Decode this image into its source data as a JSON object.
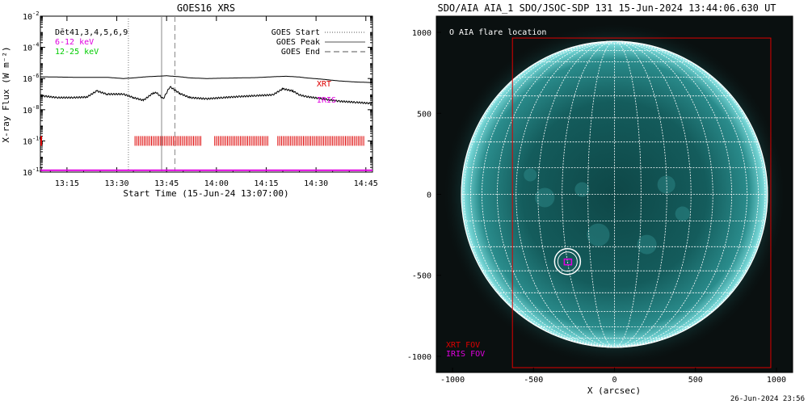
{
  "left_panel": {
    "title": "GOES16 XRS",
    "ylabel": "X-ray Flux (W m⁻²)",
    "xlabel": "Start Time (15-Jun-24 13:07:00)",
    "legend_left": [
      {
        "text": "Dēt41,3,4,5,6,9",
        "color": "#000000"
      },
      {
        "text": "6-12 keV",
        "color": "#e000e0"
      },
      {
        "text": "12-25 keV",
        "color": "#00cc00"
      }
    ],
    "legend_right": [
      {
        "text": "GOES Start",
        "style": "dotted"
      },
      {
        "text": "GOES Peak",
        "style": "solid"
      },
      {
        "text": "GOES End",
        "style": "dashed"
      }
    ],
    "inst_labels": [
      {
        "text": "XRT",
        "color": "#dd0000"
      },
      {
        "text": "IRIS",
        "color": "#e000e0"
      }
    ],
    "ytick_exponents": [
      "-2",
      "-4",
      "-6",
      "-8",
      "-10",
      "-12"
    ],
    "xtick_labels": [
      "13:15",
      "13:30",
      "13:45",
      "14:00",
      "14:15",
      "14:30",
      "14:45"
    ]
  },
  "right_panel": {
    "title": "SDO/AIA AIA_1 SDO/JSOC-SDP 131 15-Jun-2024 13:44:06.630 UT",
    "flare_legend": "O AIA flare location",
    "fov_labels": [
      {
        "text": "XRT FOV",
        "color": "#dd0000"
      },
      {
        "text": "IRIS FOV",
        "color": "#e000e0"
      }
    ],
    "xlabel": "X (arcsec)",
    "xtick_labels": [
      "-1000",
      "-500",
      "0",
      "500",
      "1000"
    ],
    "ytick_labels": [
      "1000",
      "500",
      "0",
      "-500",
      "-1000"
    ],
    "timestamp": "26-Jun-2024 23:56"
  },
  "chart_data": [
    {
      "type": "line",
      "title": "GOES16 XRS",
      "xlabel": "Start Time (15-Jun-24 13:07:00)",
      "ylabel": "X-ray Flux (W m⁻²)",
      "yscale": "log",
      "ylim": [
        1e-12,
        0.01
      ],
      "xlim_minutes": [
        0,
        100
      ],
      "x_ticks": [
        "13:15",
        "13:30",
        "13:45",
        "14:00",
        "14:15",
        "14:30",
        "14:45"
      ],
      "series": [
        {
          "name": "GOES Long",
          "color": "#000000",
          "x_minutes": [
            0,
            10,
            20,
            25,
            28,
            32,
            35,
            38,
            42,
            45,
            50,
            55,
            60,
            65,
            70,
            74,
            78,
            80,
            85,
            90,
            95,
            100
          ],
          "y": [
            1.3e-06,
            1.2e-06,
            1.2e-06,
            1e-06,
            1.1e-06,
            1.3e-06,
            1.4e-06,
            1.5e-06,
            1.3e-06,
            1.1e-06,
            1e-06,
            1.05e-06,
            1.1e-06,
            1.15e-06,
            1.3e-06,
            1.4e-06,
            1.25e-06,
            1.1e-06,
            9e-07,
            7e-07,
            6e-07,
            5.5e-07
          ]
        },
        {
          "name": "GOES Short",
          "color": "#000000",
          "x_minutes": [
            0,
            5,
            10,
            14,
            17,
            20,
            25,
            28,
            31,
            34,
            35,
            37,
            39,
            42,
            45,
            50,
            55,
            60,
            65,
            70,
            73,
            76,
            78,
            80,
            85,
            90,
            95,
            100
          ],
          "y": [
            8e-08,
            6e-08,
            6e-08,
            6.5e-08,
            1.6e-07,
            1e-07,
            1e-07,
            6e-08,
            4e-08,
            1.2e-07,
            1.2e-07,
            5e-08,
            3e-07,
            1.1e-07,
            6e-08,
            5e-08,
            6e-08,
            7e-08,
            8e-08,
            9e-08,
            2.2e-07,
            1.6e-07,
            9e-08,
            7e-08,
            5e-08,
            3.5e-08,
            3e-08,
            2.5e-08
          ]
        },
        {
          "name": "6-12 keV",
          "color": "#e000e0",
          "x_minutes": [
            0,
            100
          ],
          "y": [
            1.3e-12,
            1.3e-12
          ]
        }
      ],
      "goes_markers_minutes": {
        "start": 26.5,
        "peak": 36.5,
        "end": 40.5
      },
      "xrt_obs_minutes": [
        [
          28.5,
          48.5
        ],
        [
          52.5,
          68.5
        ],
        [
          71.5,
          97.5
        ]
      ]
    },
    {
      "type": "image",
      "title": "SDO/AIA AIA_1 SDO/JSOC-SDP 131 15-Jun-2024 13:44:06.630 UT",
      "xlabel": "X (arcsec)",
      "xlim": [
        -1100,
        1100
      ],
      "ylim": [
        -1100,
        1100
      ],
      "solar_radius_arcsec": 945,
      "flare_location": {
        "x": -290,
        "y": -415
      },
      "xrt_fov": {
        "x0": -630,
        "x1": 965,
        "y0": -1070,
        "y1": 965
      },
      "iris_fov": {
        "x0": -310,
        "x1": -265,
        "y0": -435,
        "y1": -400
      }
    }
  ]
}
